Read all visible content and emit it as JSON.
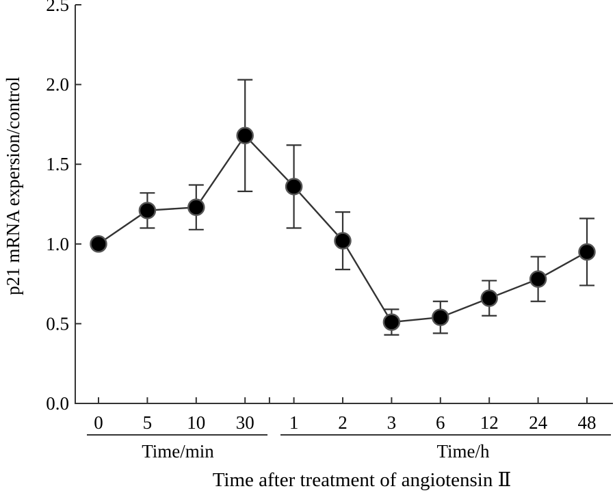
{
  "chart_data": {
    "type": "line",
    "title": "",
    "ylabel": "p21 mRNA expersion/control",
    "xlabel": "Time after treatment of angiotensin Ⅱ",
    "ylim": [
      0,
      2.5
    ],
    "yticks": [
      0.0,
      0.5,
      1.0,
      1.5,
      2.0,
      2.5
    ],
    "ytick_labels": [
      "0.0",
      "0.5",
      "1.0",
      "1.5",
      "2.0",
      "2.5"
    ],
    "categories": [
      "0",
      "5",
      "10",
      "30",
      "1",
      "2",
      "3",
      "6",
      "12",
      "24",
      "48"
    ],
    "groups": [
      {
        "label": "Time/min",
        "categories": [
          "0",
          "5",
          "10",
          "30"
        ]
      },
      {
        "label": "Time/h",
        "categories": [
          "1",
          "2",
          "3",
          "6",
          "12",
          "24",
          "48"
        ]
      }
    ],
    "series": [
      {
        "name": "p21 mRNA",
        "values": [
          1.0,
          1.21,
          1.23,
          1.68,
          1.36,
          1.02,
          0.51,
          0.54,
          0.66,
          0.78,
          0.95
        ],
        "error": [
          0.0,
          0.11,
          0.14,
          0.35,
          0.26,
          0.18,
          0.08,
          0.1,
          0.11,
          0.14,
          0.21
        ]
      }
    ]
  }
}
